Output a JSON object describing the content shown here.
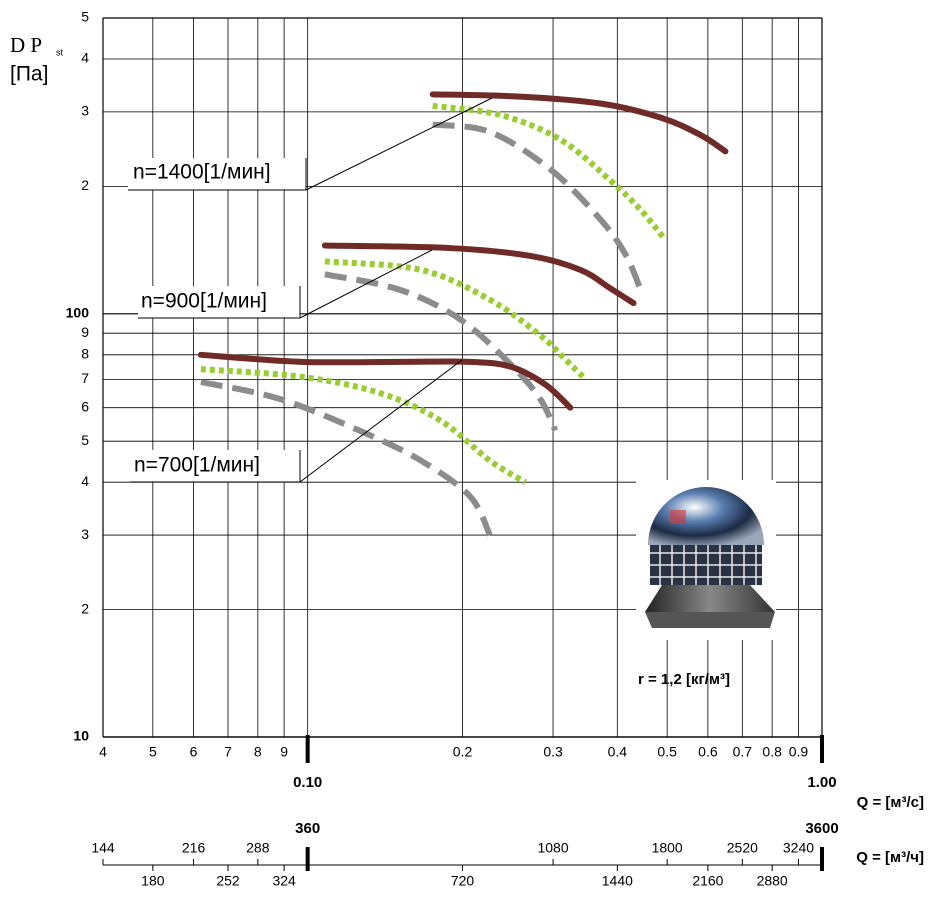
{
  "chart_data": {
    "type": "line",
    "ylabel": "D P",
    "ylabel_sub": "st",
    "ylabel_unit": "[Па]",
    "xlabel": "Q = [м³/с]",
    "x2label": "Q = [м³/ч]",
    "density_label": "r = 1,2 [кг/м³]",
    "log_x": true,
    "log_y": true,
    "grid": true,
    "xlim": [
      0.04,
      1.0
    ],
    "ylim": [
      10,
      500
    ],
    "xticks": [
      {
        "value": 0.04,
        "label": "4"
      },
      {
        "value": 0.05,
        "label": "5"
      },
      {
        "value": 0.06,
        "label": "6"
      },
      {
        "value": 0.07,
        "label": "7"
      },
      {
        "value": 0.08,
        "label": "8"
      },
      {
        "value": 0.09,
        "label": "9"
      },
      {
        "value": 0.1,
        "label": "0.10"
      },
      0.2,
      0.3,
      0.4,
      0.5,
      0.6,
      0.7,
      0.8,
      0.9,
      {
        "value": 1.0,
        "label": "1.00"
      }
    ],
    "yticks": [
      10,
      {
        "value": 20,
        "label": "2"
      },
      {
        "value": 30,
        "label": "3"
      },
      {
        "value": 40,
        "label": "4"
      },
      {
        "value": 50,
        "label": "5"
      },
      {
        "value": 60,
        "label": "6"
      },
      {
        "value": 70,
        "label": "7"
      },
      {
        "value": 80,
        "label": "8"
      },
      {
        "value": 90,
        "label": "9"
      },
      100,
      {
        "value": 200,
        "label": "2"
      },
      {
        "value": 300,
        "label": "3"
      },
      {
        "value": 400,
        "label": "4"
      },
      {
        "value": 500,
        "label": "5"
      }
    ],
    "x2lim": [
      144,
      3600
    ],
    "x2ticks": [
      144,
      180,
      216,
      252,
      288,
      324,
      360,
      720,
      1080,
      1440,
      1800,
      2160,
      2520,
      2880,
      3240,
      3600
    ],
    "annotations": [
      {
        "text": "n=1400[1/мин]"
      },
      {
        "text": "n=900[1/мин]"
      },
      {
        "text": "n=700[1/мин]"
      }
    ],
    "series": [
      {
        "color": "#6e2b28",
        "dash": "solid",
        "x": [
          0.175,
          0.259,
          0.371,
          0.485,
          0.579,
          0.649
        ],
        "values": [
          330,
          326,
          314,
          291,
          265,
          242
        ]
      },
      {
        "color": "#9acd32",
        "dash": "dotted",
        "x": [
          0.175,
          0.237,
          0.31,
          0.387,
          0.444,
          0.495
        ],
        "values": [
          310,
          295,
          258,
          207,
          176,
          150
        ]
      },
      {
        "color": "#8c8c8c",
        "dash": "dashed",
        "x": [
          0.175,
          0.226,
          0.297,
          0.371,
          0.415,
          0.444
        ],
        "values": [
          280,
          269,
          219,
          167,
          138,
          114
        ]
      },
      {
        "color": "#6e2b28",
        "dash": "solid",
        "x": [
          0.108,
          0.189,
          0.271,
          0.339,
          0.387,
          0.43
        ],
        "values": [
          145,
          143,
          137,
          127,
          115,
          106
        ]
      },
      {
        "color": "#9acd32",
        "dash": "dotted",
        "x": [
          0.108,
          0.166,
          0.226,
          0.283,
          0.317,
          0.347
        ],
        "values": [
          133,
          127,
          108,
          89,
          78,
          70
        ]
      },
      {
        "color": "#8c8c8c",
        "dash": "dashed",
        "x": [
          0.108,
          0.151,
          0.198,
          0.248,
          0.283,
          0.303
        ],
        "values": [
          124,
          114,
          97,
          76,
          63,
          53
        ]
      },
      {
        "color": "#6e2b28",
        "dash": "solid",
        "x": [
          0.062,
          0.097,
          0.151,
          0.207,
          0.248,
          0.29,
          0.324
        ],
        "values": [
          80,
          77,
          77,
          77,
          75,
          68,
          60
        ]
      },
      {
        "color": "#9acd32",
        "dash": "dotted",
        "x": [
          0.062,
          0.097,
          0.138,
          0.181,
          0.226,
          0.265
        ],
        "values": [
          74,
          71,
          65,
          56,
          45,
          40
        ]
      },
      {
        "color": "#8c8c8c",
        "dash": "dashed",
        "x": [
          0.062,
          0.088,
          0.126,
          0.166,
          0.207,
          0.226
        ],
        "values": [
          69,
          63,
          53,
          45,
          37,
          30
        ]
      }
    ]
  }
}
